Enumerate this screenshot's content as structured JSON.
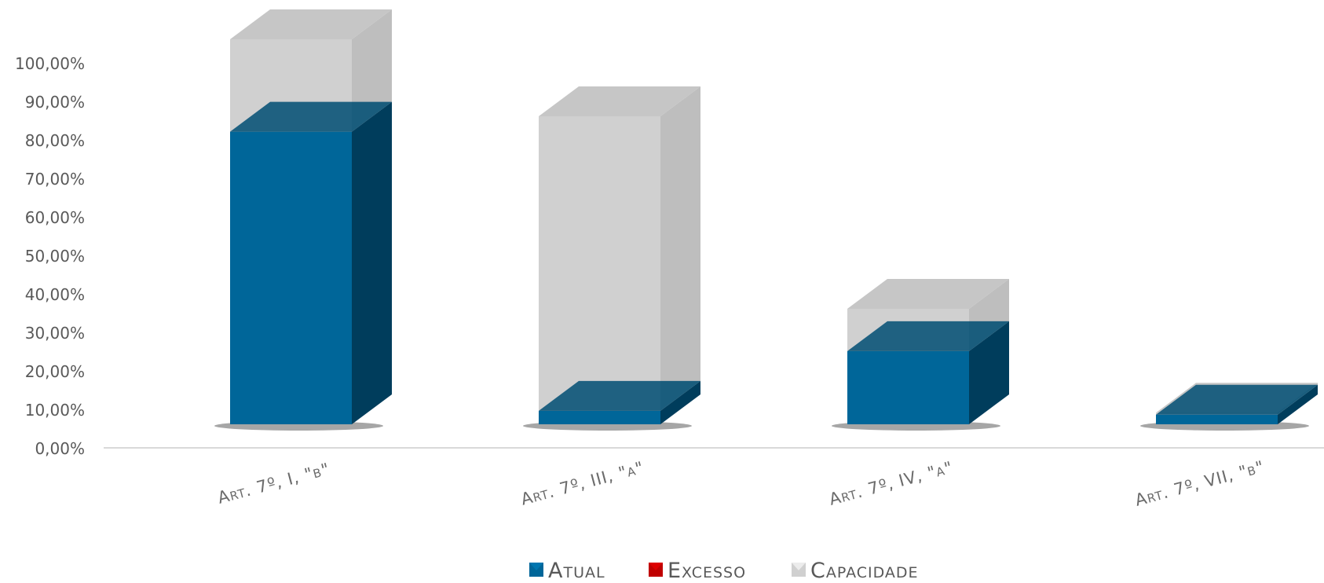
{
  "chart_data": {
    "type": "bar",
    "stacked": true,
    "three_d": true,
    "categories": [
      "Art. 7º, I, \"b\"",
      "Art. 7º, III, \"a\"",
      "Art. 7º, IV, \"a\"",
      "Art. 7º, VII, \"b\""
    ],
    "series": [
      {
        "name": "Atual",
        "values": [
          76.0,
          3.5,
          19.0,
          2.5
        ],
        "color": "#006699"
      },
      {
        "name": "Excesso",
        "values": [
          0,
          0,
          0,
          0
        ],
        "color": "#c00000"
      },
      {
        "name": "Capacidade",
        "values": [
          24.0,
          76.5,
          11.0,
          0.5
        ],
        "color": "#d0d0d0"
      }
    ],
    "yticks": [
      "0,00%",
      "10,00%",
      "20,00%",
      "30,00%",
      "40,00%",
      "50,00%",
      "60,00%",
      "70,00%",
      "80,00%",
      "90,00%",
      "100,00%"
    ],
    "ylim": [
      0,
      100
    ],
    "grid": false,
    "legend_position": "bottom"
  }
}
